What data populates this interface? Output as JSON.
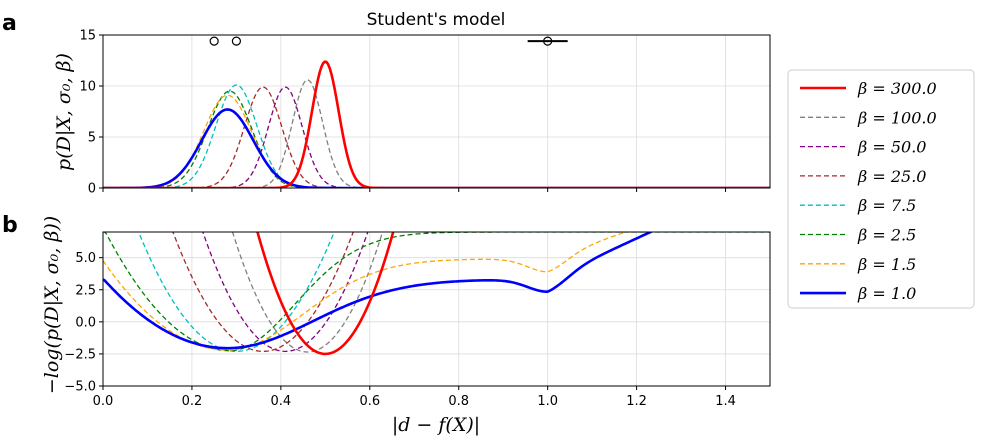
{
  "figure": {
    "title": "Student's model",
    "panel_labels": [
      "a",
      "b"
    ],
    "xlabel": "|d − f(X)|",
    "ylabel_a": "p(D|X, σ₀, β)",
    "ylabel_b": "−log(p(D|X, σ₀, β))"
  },
  "legend": {
    "placement": "right",
    "entries": [
      {
        "label": "β = 300.0",
        "color": "#ff0000",
        "style": "solid"
      },
      {
        "label": "β = 100.0",
        "color": "#808080",
        "style": "dashed"
      },
      {
        "label": "β = 50.0",
        "color": "#800080",
        "style": "dashed"
      },
      {
        "label": "β = 25.0",
        "color": "#a52a2a",
        "style": "dashed"
      },
      {
        "label": "β = 7.5",
        "color": "#00bfbf",
        "style": "dashed"
      },
      {
        "label": "β = 2.5",
        "color": "#008000",
        "style": "dashed"
      },
      {
        "label": "β = 1.5",
        "color": "#ffa500",
        "style": "dashed"
      },
      {
        "label": "β = 1.0",
        "color": "#0000ff",
        "style": "solid"
      }
    ]
  },
  "chart_data": [
    {
      "id": "a",
      "type": "line",
      "title": "Student's model",
      "xlabel": "",
      "ylabel": "p(D|X, σ₀, β)",
      "xlim": [
        0.0,
        1.5
      ],
      "ylim": [
        0,
        15
      ],
      "xticks": [
        0.0,
        0.2,
        0.4,
        0.6,
        0.8,
        1.0,
        1.2,
        1.4
      ],
      "yticks": [
        0,
        5,
        10,
        15
      ],
      "ytick_labels": [
        "0",
        "5",
        "10",
        "15"
      ],
      "grid": true,
      "observations": {
        "markers": [
          {
            "x": 0.25,
            "y": 14.4
          },
          {
            "x": 0.3,
            "y": 14.4
          },
          {
            "x": 1.0,
            "y": 14.4
          }
        ],
        "errorbar": {
          "x": 1.0,
          "y": 14.4,
          "xerr": 0.045
        }
      },
      "series": [
        {
          "name": "β = 300.0",
          "peak_x": 0.5,
          "peak_y": 12.4
        },
        {
          "name": "β = 100.0",
          "peak_x": 0.46,
          "peak_y": 10.6
        },
        {
          "name": "β = 50.0",
          "peak_x": 0.41,
          "peak_y": 9.9
        },
        {
          "name": "β = 25.0",
          "peak_x": 0.36,
          "peak_y": 9.9
        },
        {
          "name": "β = 7.5",
          "peak_x": 0.3,
          "peak_y": 10.1
        },
        {
          "name": "β = 2.5",
          "peak_x": 0.285,
          "peak_y": 9.5
        },
        {
          "name": "β = 1.5",
          "peak_x": 0.28,
          "peak_y": 9.1
        },
        {
          "name": "β = 1.0",
          "peak_x": 0.28,
          "peak_y": 7.7
        }
      ]
    },
    {
      "id": "b",
      "type": "line",
      "xlabel": "|d − f(X)|",
      "ylabel": "−log(p(D|X, σ₀, β))",
      "xlim": [
        0.0,
        1.5
      ],
      "ylim": [
        -5.0,
        7.0
      ],
      "xticks": [
        0.0,
        0.2,
        0.4,
        0.6,
        0.8,
        1.0,
        1.2,
        1.4
      ],
      "xtick_labels": [
        "0.0",
        "0.2",
        "0.4",
        "0.6",
        "0.8",
        "1.0",
        "1.2",
        "1.4"
      ],
      "yticks": [
        -5.0,
        -2.5,
        0.0,
        2.5,
        5.0
      ],
      "ytick_labels": [
        "−5.0",
        "−2.5",
        "0.0",
        "2.5",
        "5.0"
      ],
      "grid": true,
      "series": [
        {
          "name": "β = 300.0",
          "min_x": 0.5,
          "min_y": -2.5
        },
        {
          "name": "β = 100.0",
          "min_x": 0.46,
          "min_y": -2.35
        },
        {
          "name": "β = 50.0",
          "min_x": 0.41,
          "min_y": -2.3
        },
        {
          "name": "β = 25.0",
          "min_x": 0.36,
          "min_y": -2.3
        },
        {
          "name": "β = 7.5",
          "min_x": 0.3,
          "min_y": -2.3
        },
        {
          "name": "β = 2.5",
          "min_x": 0.285,
          "min_y": -2.25,
          "plateau_y": 7.0
        },
        {
          "name": "β = 1.5",
          "min_x": 0.28,
          "min_y": -2.2,
          "plateau_y": 4.9,
          "second_min_x": 1.0,
          "second_min_y": 3.9
        },
        {
          "name": "β = 1.0",
          "min_x": 0.28,
          "min_y": -2.05,
          "plateau_y": 3.3,
          "second_min_x": 1.0,
          "second_min_y": 2.35
        }
      ]
    }
  ]
}
